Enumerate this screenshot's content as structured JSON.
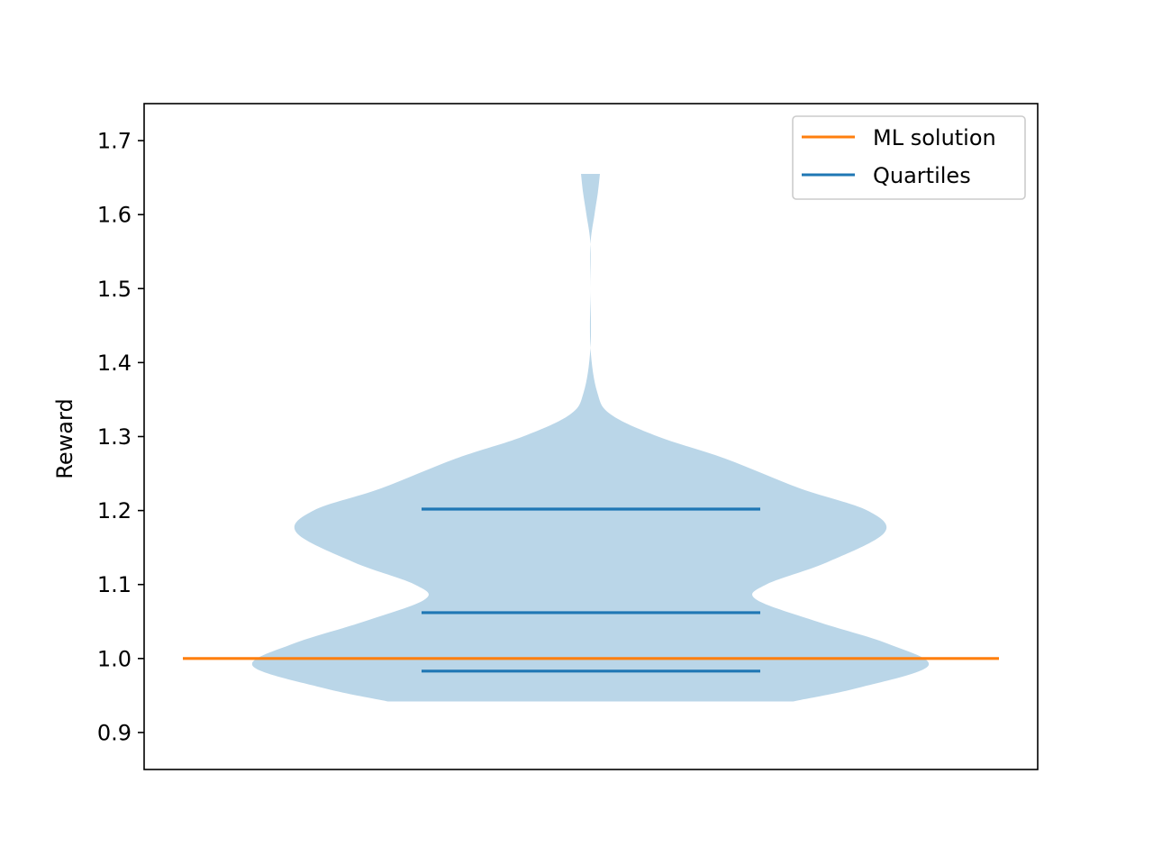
{
  "chart_data": {
    "type": "violin",
    "title": "",
    "xlabel": "",
    "ylabel": "Reward",
    "ylim": [
      0.85,
      1.75
    ],
    "yticks": [
      0.9,
      1.0,
      1.1,
      1.2,
      1.3,
      1.4,
      1.5,
      1.6,
      1.7
    ],
    "ytick_labels": [
      "0.9",
      "1.0",
      "1.1",
      "1.2",
      "1.3",
      "1.4",
      "1.5",
      "1.6",
      "1.7"
    ],
    "grid": false,
    "legend_position": "top-right",
    "distribution": {
      "min": 0.942,
      "max": 1.655,
      "color": "#bad6e8",
      "density_profile": [
        [
          0.942,
          0.6
        ],
        [
          0.96,
          0.79
        ],
        [
          0.99,
          1.0
        ],
        [
          1.02,
          0.88
        ],
        [
          1.05,
          0.67
        ],
        [
          1.08,
          0.49
        ],
        [
          1.1,
          0.52
        ],
        [
          1.13,
          0.7
        ],
        [
          1.17,
          0.87
        ],
        [
          1.2,
          0.82
        ],
        [
          1.23,
          0.62
        ],
        [
          1.27,
          0.4
        ],
        [
          1.3,
          0.2
        ],
        [
          1.33,
          0.06
        ],
        [
          1.36,
          0.02
        ],
        [
          1.42,
          0.0
        ],
        [
          1.5,
          0.0
        ],
        [
          1.56,
          0.0
        ],
        [
          1.6,
          0.012
        ],
        [
          1.63,
          0.022
        ],
        [
          1.655,
          0.028
        ]
      ]
    },
    "series": [
      {
        "name": "ML solution",
        "type": "hline",
        "value": 1.0,
        "color": "#ff7f0e"
      },
      {
        "name": "Quartiles",
        "type": "hlines",
        "values": [
          0.983,
          1.062,
          1.202
        ],
        "color": "#1f77b4"
      }
    ]
  }
}
